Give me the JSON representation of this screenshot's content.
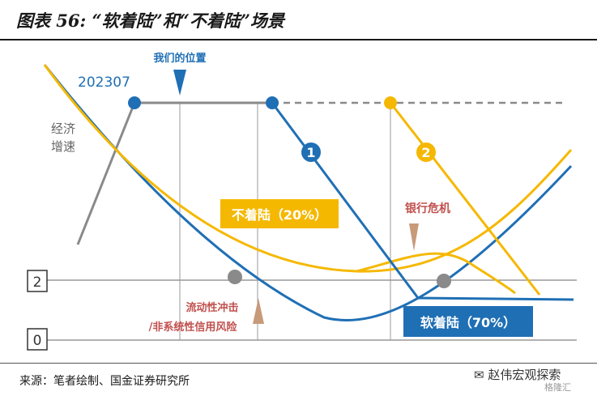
{
  "title": "图表 56: “软着陆”和“不着陆”场景",
  "source": "来源：笔者绘制、国金证券研究所",
  "watermark": "赵伟宏观探索",
  "watermark_sub": "格隆汇",
  "labels": {
    "our_position": "我们的位置",
    "date": "202307",
    "growth": [
      "经济",
      "增速"
    ],
    "no_landing": "不着陆（20%）",
    "soft_landing": "软着陆（70%）",
    "bank_crisis": "银行危机",
    "liquidity_shock": [
      "流动性冲击",
      "/非系统性信用风险"
    ],
    "marker_1": "1",
    "marker_2": "2",
    "level_2": "2",
    "level_0": "0"
  },
  "colors": {
    "blue": "#1f6fb5",
    "yellow": "#f5b800",
    "gray": "#8a8a8a",
    "red_text": "#c0504d",
    "arrow_brown": "#c79a7a"
  }
}
